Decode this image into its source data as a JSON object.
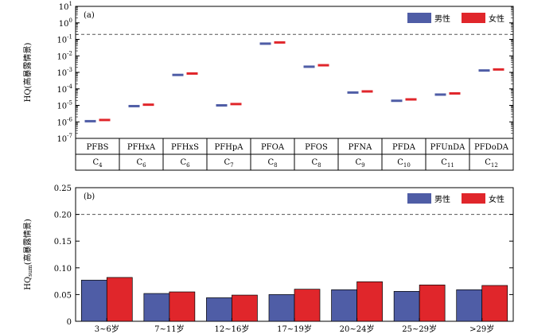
{
  "chart_data": [
    {
      "type": "scatter",
      "panel_label": "(a)",
      "ylabel": "HQ(高暴露情景)",
      "yscale": "log",
      "ylim": [
        1e-07,
        10
      ],
      "ytick_labels": [
        {
          "base": "10",
          "exp": "-7"
        },
        {
          "base": "10",
          "exp": "-6"
        },
        {
          "base": "10",
          "exp": "-5"
        },
        {
          "base": "10",
          "exp": "-4"
        },
        {
          "base": "10",
          "exp": "-3"
        },
        {
          "base": "10",
          "exp": "-2"
        },
        {
          "base": "10",
          "exp": "-1"
        },
        {
          "base": "10",
          "exp": "0"
        },
        {
          "base": "10",
          "exp": "1"
        }
      ],
      "threshold": 0.2,
      "grid": false,
      "legend_position": "top-right",
      "categories": [
        "PFBS",
        "PFHxA",
        "PFHxS",
        "PFHpA",
        "PFOA",
        "PFOS",
        "PFNA",
        "PFDA",
        "PFUnDA",
        "PFDoDA"
      ],
      "carbon_labels": [
        {
          "base": "C",
          "sub": "4"
        },
        {
          "base": "C",
          "sub": "6"
        },
        {
          "base": "C",
          "sub": "6"
        },
        {
          "base": "C",
          "sub": "7"
        },
        {
          "base": "C",
          "sub": "8"
        },
        {
          "base": "C",
          "sub": "8"
        },
        {
          "base": "C",
          "sub": "9"
        },
        {
          "base": "C",
          "sub": "10"
        },
        {
          "base": "C",
          "sub": "11"
        },
        {
          "base": "C",
          "sub": "12"
        }
      ],
      "series": [
        {
          "name": "男性",
          "color": "#4f5da6",
          "values": [
            1.1e-06,
            9e-06,
            0.0007,
            1e-05,
            0.055,
            0.0022,
            6e-05,
            1.9e-05,
            4.5e-05,
            0.0013
          ]
        },
        {
          "name": "女性",
          "color": "#e0262b",
          "values": [
            1.3e-06,
            1.1e-05,
            0.00085,
            1.2e-05,
            0.065,
            0.0027,
            7e-05,
            2.3e-05,
            5.3e-05,
            0.0015
          ]
        }
      ]
    },
    {
      "type": "bar",
      "panel_label": "(b)",
      "ylabel_main": "HQ",
      "ylabel_sub": "sum",
      "ylabel_rest": "(高暴露情景)",
      "ylim": [
        0,
        0.25
      ],
      "yticks": [
        0,
        0.05,
        0.1,
        0.15,
        0.2,
        0.25
      ],
      "ytick_labels": [
        "0",
        "0.05",
        "0.10",
        "0.15",
        "0.20",
        "0.25"
      ],
      "threshold": 0.2,
      "grid": false,
      "legend_position": "top-right",
      "categories": [
        "3~6岁",
        "7~11岁",
        "12~16岁",
        "17~19岁",
        "20~24岁",
        "25~29岁",
        ">29岁"
      ],
      "series": [
        {
          "name": "男性",
          "color": "#4f5da6",
          "values": [
            0.077,
            0.052,
            0.044,
            0.05,
            0.059,
            0.056,
            0.059
          ]
        },
        {
          "name": "女性",
          "color": "#e0262b",
          "values": [
            0.082,
            0.055,
            0.049,
            0.06,
            0.074,
            0.068,
            0.067
          ]
        }
      ]
    }
  ]
}
